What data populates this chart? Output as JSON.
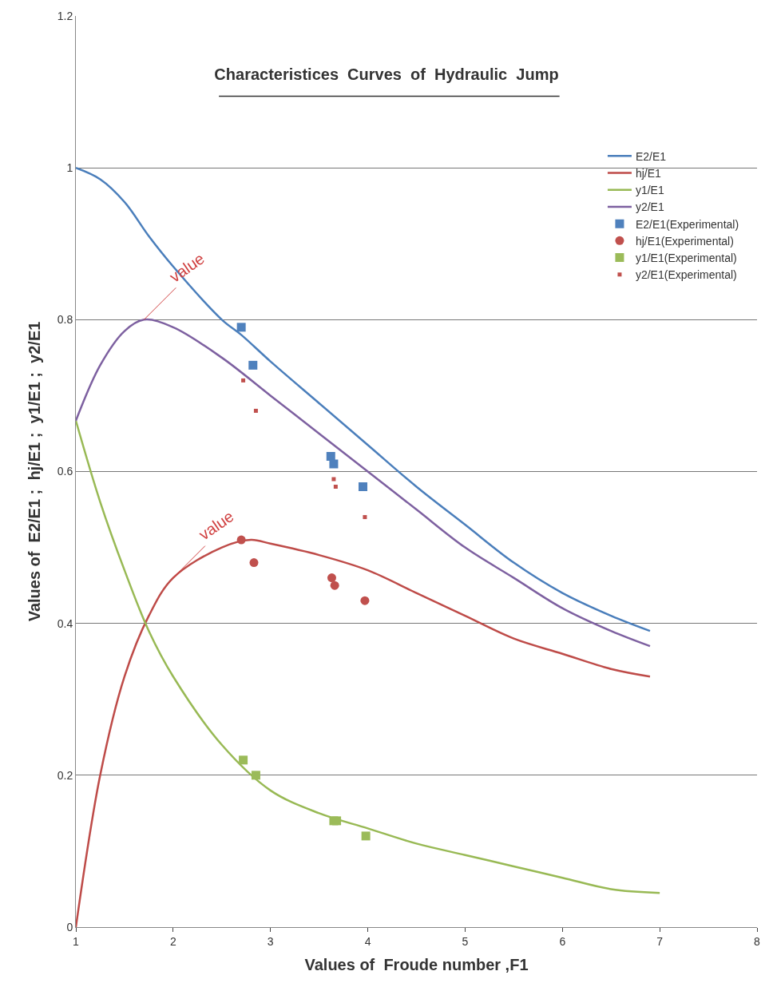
{
  "chart_data": {
    "type": "line",
    "title": "Characteristices  Curves  of  Hydraulic  Jump",
    "xlabel": "Values of  Froude number ,F1",
    "ylabel": "Values of  E2/E1 ;  hj/E1 ;  y1/E1 ;  y2/E1",
    "xlim": [
      1,
      8
    ],
    "xticks": [
      1,
      2,
      3,
      4,
      5,
      6,
      7,
      8
    ],
    "ylim": [
      0,
      1.2
    ],
    "yticks": [
      0,
      0.2,
      0.4,
      0.6,
      0.8,
      1,
      1.2
    ],
    "grid": "y",
    "legend": "top right",
    "series": [
      {
        "name": "E2/E1",
        "color": "#4a7ebb",
        "marker": "none",
        "x": [
          1,
          1.25,
          1.5,
          1.75,
          2,
          2.5,
          2.7,
          3,
          3.5,
          4,
          4.5,
          5,
          5.5,
          6,
          6.5,
          6.9
        ],
        "values": [
          1,
          0.985,
          0.955,
          0.91,
          0.87,
          0.8,
          0.78,
          0.745,
          0.69,
          0.635,
          0.58,
          0.53,
          0.48,
          0.44,
          0.41,
          0.39
        ]
      },
      {
        "name": "hj/E1",
        "color": "#be4b48",
        "marker": "none",
        "x": [
          1,
          1.25,
          1.5,
          1.75,
          2,
          2.5,
          2.8,
          3,
          3.5,
          4,
          4.5,
          5,
          5.5,
          6,
          6.5,
          6.9
        ],
        "values": [
          0,
          0.2,
          0.33,
          0.41,
          0.46,
          0.5,
          0.51,
          0.505,
          0.49,
          0.47,
          0.44,
          0.41,
          0.38,
          0.36,
          0.34,
          0.33
        ]
      },
      {
        "name": "y1/E1",
        "color": "#98b954",
        "marker": "none",
        "x": [
          1,
          1.25,
          1.5,
          1.75,
          2,
          2.5,
          3,
          3.5,
          4,
          4.5,
          5,
          5.5,
          6,
          6.5,
          7
        ],
        "values": [
          0.667,
          0.56,
          0.47,
          0.39,
          0.33,
          0.24,
          0.18,
          0.15,
          0.13,
          0.11,
          0.095,
          0.08,
          0.065,
          0.05,
          0.045
        ]
      },
      {
        "name": "y2/E1",
        "color": "#7d60a0",
        "marker": "none",
        "x": [
          1,
          1.25,
          1.5,
          1.7,
          2,
          2.5,
          3,
          3.5,
          4,
          4.5,
          5,
          5.5,
          6,
          6.5,
          6.9
        ],
        "values": [
          0.667,
          0.74,
          0.785,
          0.8,
          0.79,
          0.75,
          0.7,
          0.65,
          0.6,
          0.55,
          0.5,
          0.46,
          0.42,
          0.39,
          0.37
        ]
      },
      {
        "name": "E2/E1(Experimental)",
        "type": "scatter",
        "color": "#4f81bd",
        "marker": "square",
        "x": [
          2.7,
          2.82,
          3.62,
          3.65,
          3.95
        ],
        "values": [
          0.79,
          0.74,
          0.62,
          0.61,
          0.58
        ]
      },
      {
        "name": "hj/E1(Experimental)",
        "type": "scatter",
        "color": "#c0504d",
        "marker": "circle",
        "x": [
          2.7,
          2.83,
          3.63,
          3.66,
          3.97
        ],
        "values": [
          0.51,
          0.48,
          0.46,
          0.45,
          0.43
        ]
      },
      {
        "name": "y1/E1(Experimental)",
        "type": "scatter",
        "color": "#9bbb59",
        "marker": "square",
        "x": [
          2.72,
          2.85,
          3.65,
          3.68,
          3.98
        ],
        "values": [
          0.22,
          0.2,
          0.14,
          0.14,
          0.12
        ]
      },
      {
        "name": "y2/E1(Experimental)",
        "type": "scatter",
        "color": "#c0504d",
        "marker": "square",
        "x": [
          2.72,
          2.85,
          3.65,
          3.67,
          3.97
        ],
        "values": [
          0.72,
          0.68,
          0.59,
          0.58,
          0.54
        ]
      }
    ],
    "annotations": [
      {
        "text": "value",
        "x": 1.7,
        "y": 0.8
      },
      {
        "text": "value",
        "x": 2,
        "y": 0.46
      }
    ]
  }
}
